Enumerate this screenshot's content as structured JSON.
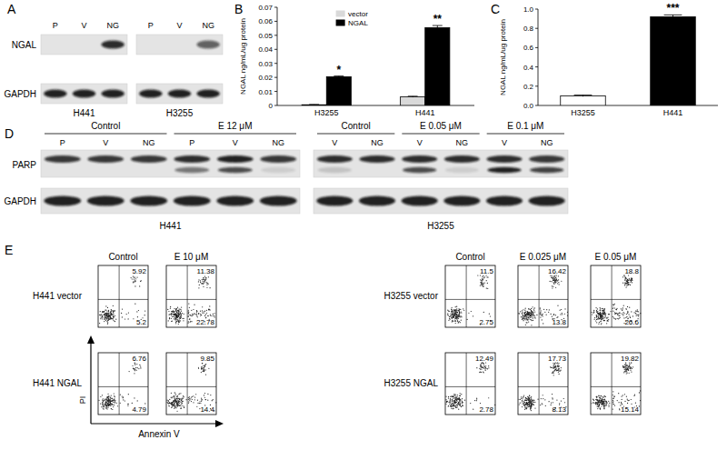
{
  "panel_letters": [
    "A",
    "B",
    "C",
    "D",
    "E"
  ],
  "panel_a": {
    "rows": [
      "NGAL",
      "GAPDH"
    ],
    "blots": [
      {
        "cell_line": "H441",
        "lanes": [
          "P",
          "V",
          "NG"
        ],
        "ngal": [
          0,
          0,
          0.85
        ],
        "gapdh": [
          0.9,
          0.9,
          0.9
        ]
      },
      {
        "cell_line": "H3255",
        "lanes": [
          "P",
          "V",
          "NG"
        ],
        "ngal": [
          0,
          0,
          0.6
        ],
        "gapdh": [
          0.9,
          0.9,
          0.9
        ]
      }
    ]
  },
  "chart_data": [
    {
      "type": "bar",
      "categories": [
        "H3255",
        "H441"
      ],
      "series": [
        {
          "name": "vector",
          "color": "#d9d9d9",
          "values": [
            0.0005,
            0.0062
          ],
          "errors": [
            0.0002,
            0.0004
          ]
        },
        {
          "name": "NGAL",
          "color": "#000000",
          "values": [
            0.0205,
            0.0555
          ],
          "errors": [
            0.0005,
            0.0015
          ]
        }
      ],
      "y_label": "NGAL ng/mL/ug protein",
      "ylim": [
        0,
        0.07
      ],
      "yticks": [
        0,
        0.01,
        0.02,
        0.03,
        0.04,
        0.05,
        0.06,
        0.07
      ],
      "legend": "upper left",
      "annotations": [
        {
          "text": "*",
          "x": "H3255"
        },
        {
          "text": "**",
          "x": "H441"
        }
      ]
    },
    {
      "type": "bar",
      "categories": [
        "H3255",
        "H441"
      ],
      "values": [
        0.1,
        0.92
      ],
      "errors": [
        0.008,
        0.02
      ],
      "colors": [
        "#ffffff",
        "#000000"
      ],
      "y_label": "NGAL ng/mL/ug protein",
      "ylim": [
        0,
        1
      ],
      "yticks": [
        {
          "value": 0,
          "label": "0.0"
        },
        0.2,
        0.4,
        0.6,
        0.8,
        {
          "value": 1,
          "label": "1.0"
        }
      ],
      "annotations": [
        {
          "text": "***",
          "x": "H441"
        }
      ]
    }
  ],
  "panel_d": {
    "rows": [
      "PARP",
      "GAPDH"
    ],
    "blots": [
      {
        "cell_line": "H441",
        "groups": [
          {
            "label": "Control",
            "lanes": [
              "P",
              "V",
              "NG"
            ]
          },
          {
            "label": "E 12 μM",
            "lanes": [
              "P",
              "V",
              "NG"
            ]
          }
        ],
        "parp": [
          0.8,
          0.8,
          0.8,
          0.85,
          0.9,
          0.8
        ],
        "cleaved_parp": [
          0,
          0,
          0,
          0.5,
          0.7,
          0.1
        ],
        "gapdh": [
          0.9,
          0.9,
          0.9,
          0.9,
          0.9,
          0.9
        ]
      },
      {
        "cell_line": "H3255",
        "groups": [
          {
            "label": "Control",
            "lanes": [
              "V",
              "NG"
            ]
          },
          {
            "label": "E 0.05 μM",
            "lanes": [
              "V",
              "NG"
            ]
          },
          {
            "label": "E 0.1 μM",
            "lanes": [
              "V",
              "NG"
            ]
          }
        ],
        "parp": [
          0.85,
          0.85,
          0.85,
          0.85,
          0.85,
          0.8
        ],
        "cleaved_parp": [
          0.15,
          0,
          0.7,
          0.1,
          0.9,
          0.75
        ],
        "gapdh": [
          0.9,
          0.9,
          0.9,
          0.9,
          0.9,
          0.9
        ]
      }
    ]
  },
  "panel_e": {
    "x_label": "Annexin V",
    "y_label": "PI",
    "groups": [
      {
        "conditions": [
          "Control",
          "E 10 μM"
        ],
        "rows": [
          {
            "label": "H441 vector",
            "upper_right": [
              5.92,
              11.38
            ],
            "lower_right": [
              5.2,
              22.78
            ]
          },
          {
            "label": "H441 NGAL",
            "upper_right": [
              6.76,
              9.85
            ],
            "lower_right": [
              4.79,
              14.4
            ]
          }
        ]
      },
      {
        "conditions": [
          "Control",
          "E 0.025 μM",
          "E 0.05 μM"
        ],
        "rows": [
          {
            "label": "H3255 vector",
            "upper_right": [
              11.5,
              16.42,
              18.8
            ],
            "lower_right": [
              2.75,
              13.8,
              26.6
            ]
          },
          {
            "label": "H3255 NGAL",
            "upper_right": [
              12.49,
              17.73,
              19.82
            ],
            "lower_right": [
              2.78,
              8.13,
              15.14
            ]
          }
        ]
      }
    ]
  }
}
